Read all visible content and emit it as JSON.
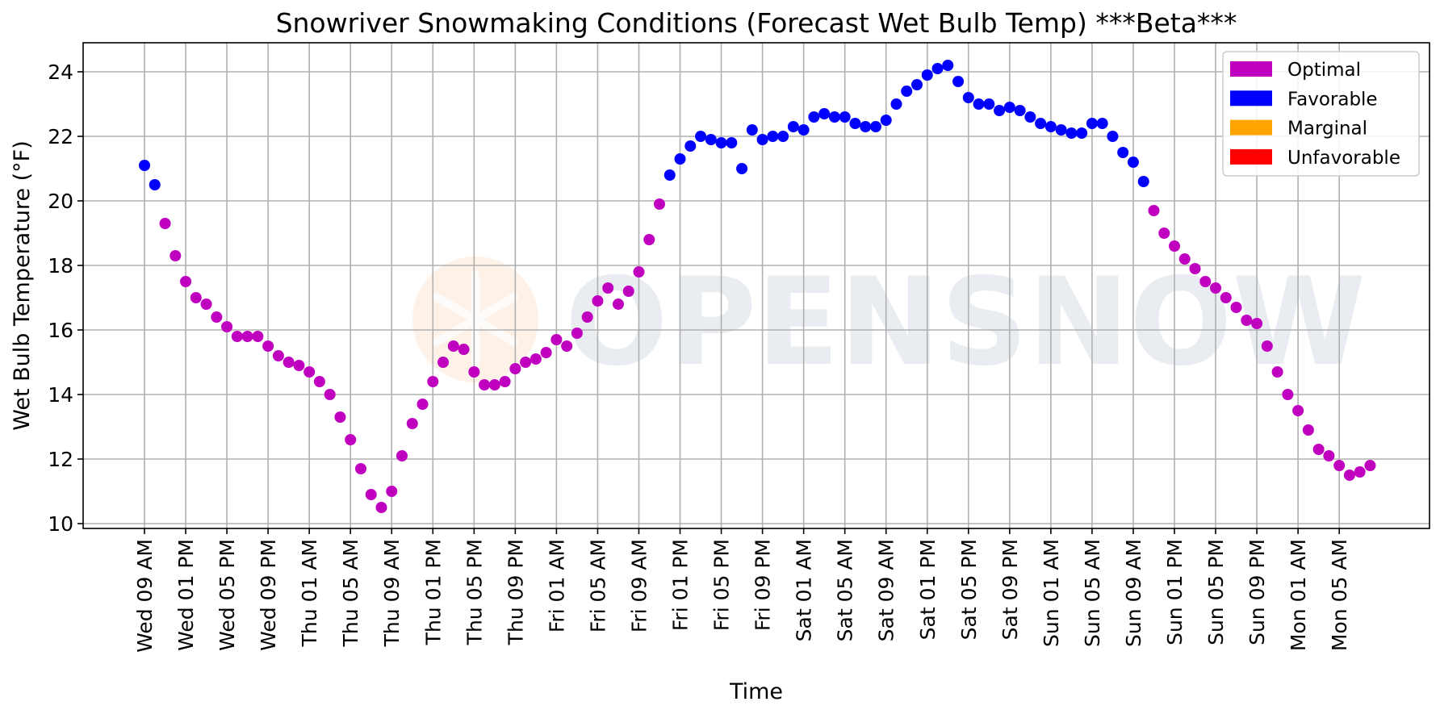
{
  "chart_data": {
    "type": "scatter",
    "title": "Snowriver Snowmaking Conditions (Forecast Wet Bulb Temp) ***Beta***",
    "xlabel": "Time",
    "ylabel": "Wet Bulb Temperature (°F)",
    "ylim": [
      9.85,
      24.9
    ],
    "yticks": [
      10,
      12,
      14,
      16,
      18,
      20,
      22,
      24
    ],
    "xticks": [
      "Wed 09 AM",
      "Wed 01 PM",
      "Wed 05 PM",
      "Wed 09 PM",
      "Thu 01 AM",
      "Thu 05 AM",
      "Thu 09 AM",
      "Thu 01 PM",
      "Thu 05 PM",
      "Thu 09 PM",
      "Fri 01 AM",
      "Fri 05 AM",
      "Fri 09 AM",
      "Fri 01 PM",
      "Fri 05 PM",
      "Fri 09 PM",
      "Sat 01 AM",
      "Sat 05 AM",
      "Sat 09 AM",
      "Sat 01 PM",
      "Sat 05 PM",
      "Sat 09 PM",
      "Sun 01 AM",
      "Sun 05 AM",
      "Sun 09 AM",
      "Sun 01 PM",
      "Sun 05 PM",
      "Sun 09 PM",
      "Mon 01 AM",
      "Mon 05 AM"
    ],
    "grid": true,
    "legend_position": "top-right",
    "legend": [
      {
        "label": "Optimal",
        "color": "#bf00bf"
      },
      {
        "label": "Favorable",
        "color": "#0000ff"
      },
      {
        "label": "Marginal",
        "color": "#ffa500"
      },
      {
        "label": "Unfavorable",
        "color": "#ff0000"
      }
    ],
    "point_interval_hours": 1,
    "points": [
      {
        "hour": 0,
        "y": 21.1,
        "category": "Favorable"
      },
      {
        "hour": 1,
        "y": 20.5,
        "category": "Favorable"
      },
      {
        "hour": 2,
        "y": 19.3,
        "category": "Optimal"
      },
      {
        "hour": 3,
        "y": 18.3,
        "category": "Optimal"
      },
      {
        "hour": 4,
        "y": 17.5,
        "category": "Optimal"
      },
      {
        "hour": 5,
        "y": 17.0,
        "category": "Optimal"
      },
      {
        "hour": 6,
        "y": 16.8,
        "category": "Optimal"
      },
      {
        "hour": 7,
        "y": 16.4,
        "category": "Optimal"
      },
      {
        "hour": 8,
        "y": 16.1,
        "category": "Optimal"
      },
      {
        "hour": 9,
        "y": 15.8,
        "category": "Optimal"
      },
      {
        "hour": 10,
        "y": 15.8,
        "category": "Optimal"
      },
      {
        "hour": 11,
        "y": 15.8,
        "category": "Optimal"
      },
      {
        "hour": 12,
        "y": 15.5,
        "category": "Optimal"
      },
      {
        "hour": 13,
        "y": 15.2,
        "category": "Optimal"
      },
      {
        "hour": 14,
        "y": 15.0,
        "category": "Optimal"
      },
      {
        "hour": 15,
        "y": 14.9,
        "category": "Optimal"
      },
      {
        "hour": 16,
        "y": 14.7,
        "category": "Optimal"
      },
      {
        "hour": 17,
        "y": 14.4,
        "category": "Optimal"
      },
      {
        "hour": 18,
        "y": 14.0,
        "category": "Optimal"
      },
      {
        "hour": 19,
        "y": 13.3,
        "category": "Optimal"
      },
      {
        "hour": 20,
        "y": 12.6,
        "category": "Optimal"
      },
      {
        "hour": 21,
        "y": 11.7,
        "category": "Optimal"
      },
      {
        "hour": 22,
        "y": 10.9,
        "category": "Optimal"
      },
      {
        "hour": 23,
        "y": 10.5,
        "category": "Optimal"
      },
      {
        "hour": 24,
        "y": 11.0,
        "category": "Optimal"
      },
      {
        "hour": 25,
        "y": 12.1,
        "category": "Optimal"
      },
      {
        "hour": 26,
        "y": 13.1,
        "category": "Optimal"
      },
      {
        "hour": 27,
        "y": 13.7,
        "category": "Optimal"
      },
      {
        "hour": 28,
        "y": 14.4,
        "category": "Optimal"
      },
      {
        "hour": 29,
        "y": 15.0,
        "category": "Optimal"
      },
      {
        "hour": 30,
        "y": 15.5,
        "category": "Optimal"
      },
      {
        "hour": 31,
        "y": 15.4,
        "category": "Optimal"
      },
      {
        "hour": 32,
        "y": 14.7,
        "category": "Optimal"
      },
      {
        "hour": 33,
        "y": 14.3,
        "category": "Optimal"
      },
      {
        "hour": 34,
        "y": 14.3,
        "category": "Optimal"
      },
      {
        "hour": 35,
        "y": 14.4,
        "category": "Optimal"
      },
      {
        "hour": 36,
        "y": 14.8,
        "category": "Optimal"
      },
      {
        "hour": 37,
        "y": 15.0,
        "category": "Optimal"
      },
      {
        "hour": 38,
        "y": 15.1,
        "category": "Optimal"
      },
      {
        "hour": 39,
        "y": 15.3,
        "category": "Optimal"
      },
      {
        "hour": 40,
        "y": 15.7,
        "category": "Optimal"
      },
      {
        "hour": 41,
        "y": 15.5,
        "category": "Optimal"
      },
      {
        "hour": 42,
        "y": 15.9,
        "category": "Optimal"
      },
      {
        "hour": 43,
        "y": 16.4,
        "category": "Optimal"
      },
      {
        "hour": 44,
        "y": 16.9,
        "category": "Optimal"
      },
      {
        "hour": 45,
        "y": 17.3,
        "category": "Optimal"
      },
      {
        "hour": 46,
        "y": 16.8,
        "category": "Optimal"
      },
      {
        "hour": 47,
        "y": 17.2,
        "category": "Optimal"
      },
      {
        "hour": 48,
        "y": 17.8,
        "category": "Optimal"
      },
      {
        "hour": 49,
        "y": 18.8,
        "category": "Optimal"
      },
      {
        "hour": 50,
        "y": 19.9,
        "category": "Optimal"
      },
      {
        "hour": 51,
        "y": 20.8,
        "category": "Favorable"
      },
      {
        "hour": 52,
        "y": 21.3,
        "category": "Favorable"
      },
      {
        "hour": 53,
        "y": 21.7,
        "category": "Favorable"
      },
      {
        "hour": 54,
        "y": 22.0,
        "category": "Favorable"
      },
      {
        "hour": 55,
        "y": 21.9,
        "category": "Favorable"
      },
      {
        "hour": 56,
        "y": 21.8,
        "category": "Favorable"
      },
      {
        "hour": 57,
        "y": 21.8,
        "category": "Favorable"
      },
      {
        "hour": 58,
        "y": 21.0,
        "category": "Favorable"
      },
      {
        "hour": 59,
        "y": 22.2,
        "category": "Favorable"
      },
      {
        "hour": 60,
        "y": 21.9,
        "category": "Favorable"
      },
      {
        "hour": 61,
        "y": 22.0,
        "category": "Favorable"
      },
      {
        "hour": 62,
        "y": 22.0,
        "category": "Favorable"
      },
      {
        "hour": 63,
        "y": 22.3,
        "category": "Favorable"
      },
      {
        "hour": 64,
        "y": 22.2,
        "category": "Favorable"
      },
      {
        "hour": 65,
        "y": 22.6,
        "category": "Favorable"
      },
      {
        "hour": 66,
        "y": 22.7,
        "category": "Favorable"
      },
      {
        "hour": 67,
        "y": 22.6,
        "category": "Favorable"
      },
      {
        "hour": 68,
        "y": 22.6,
        "category": "Favorable"
      },
      {
        "hour": 69,
        "y": 22.4,
        "category": "Favorable"
      },
      {
        "hour": 70,
        "y": 22.3,
        "category": "Favorable"
      },
      {
        "hour": 71,
        "y": 22.3,
        "category": "Favorable"
      },
      {
        "hour": 72,
        "y": 22.5,
        "category": "Favorable"
      },
      {
        "hour": 73,
        "y": 23.0,
        "category": "Favorable"
      },
      {
        "hour": 74,
        "y": 23.4,
        "category": "Favorable"
      },
      {
        "hour": 75,
        "y": 23.6,
        "category": "Favorable"
      },
      {
        "hour": 76,
        "y": 23.9,
        "category": "Favorable"
      },
      {
        "hour": 77,
        "y": 24.1,
        "category": "Favorable"
      },
      {
        "hour": 78,
        "y": 24.2,
        "category": "Favorable"
      },
      {
        "hour": 79,
        "y": 23.7,
        "category": "Favorable"
      },
      {
        "hour": 80,
        "y": 23.2,
        "category": "Favorable"
      },
      {
        "hour": 81,
        "y": 23.0,
        "category": "Favorable"
      },
      {
        "hour": 82,
        "y": 23.0,
        "category": "Favorable"
      },
      {
        "hour": 83,
        "y": 22.8,
        "category": "Favorable"
      },
      {
        "hour": 84,
        "y": 22.9,
        "category": "Favorable"
      },
      {
        "hour": 85,
        "y": 22.8,
        "category": "Favorable"
      },
      {
        "hour": 86,
        "y": 22.6,
        "category": "Favorable"
      },
      {
        "hour": 87,
        "y": 22.4,
        "category": "Favorable"
      },
      {
        "hour": 88,
        "y": 22.3,
        "category": "Favorable"
      },
      {
        "hour": 89,
        "y": 22.2,
        "category": "Favorable"
      },
      {
        "hour": 90,
        "y": 22.1,
        "category": "Favorable"
      },
      {
        "hour": 91,
        "y": 22.1,
        "category": "Favorable"
      },
      {
        "hour": 92,
        "y": 22.4,
        "category": "Favorable"
      },
      {
        "hour": 93,
        "y": 22.4,
        "category": "Favorable"
      },
      {
        "hour": 94,
        "y": 22.0,
        "category": "Favorable"
      },
      {
        "hour": 95,
        "y": 21.5,
        "category": "Favorable"
      },
      {
        "hour": 96,
        "y": 21.2,
        "category": "Favorable"
      },
      {
        "hour": 97,
        "y": 20.6,
        "category": "Favorable"
      },
      {
        "hour": 98,
        "y": 19.7,
        "category": "Optimal"
      },
      {
        "hour": 99,
        "y": 19.0,
        "category": "Optimal"
      },
      {
        "hour": 100,
        "y": 18.6,
        "category": "Optimal"
      },
      {
        "hour": 101,
        "y": 18.2,
        "category": "Optimal"
      },
      {
        "hour": 102,
        "y": 17.9,
        "category": "Optimal"
      },
      {
        "hour": 103,
        "y": 17.5,
        "category": "Optimal"
      },
      {
        "hour": 104,
        "y": 17.3,
        "category": "Optimal"
      },
      {
        "hour": 105,
        "y": 17.0,
        "category": "Optimal"
      },
      {
        "hour": 106,
        "y": 16.7,
        "category": "Optimal"
      },
      {
        "hour": 107,
        "y": 16.3,
        "category": "Optimal"
      },
      {
        "hour": 108,
        "y": 16.2,
        "category": "Optimal"
      },
      {
        "hour": 109,
        "y": 15.5,
        "category": "Optimal"
      },
      {
        "hour": 110,
        "y": 14.7,
        "category": "Optimal"
      },
      {
        "hour": 111,
        "y": 14.0,
        "category": "Optimal"
      },
      {
        "hour": 112,
        "y": 13.5,
        "category": "Optimal"
      },
      {
        "hour": 113,
        "y": 12.9,
        "category": "Optimal"
      },
      {
        "hour": 114,
        "y": 12.3,
        "category": "Optimal"
      },
      {
        "hour": 115,
        "y": 12.1,
        "category": "Optimal"
      },
      {
        "hour": 116,
        "y": 11.8,
        "category": "Optimal"
      },
      {
        "hour": 117,
        "y": 11.5,
        "category": "Optimal"
      },
      {
        "hour": 118,
        "y": 11.6,
        "category": "Optimal"
      },
      {
        "hour": 119,
        "y": 11.8,
        "category": "Optimal"
      }
    ]
  },
  "watermark": {
    "text": "OPENSNOW",
    "icon": "snowflake-icon",
    "color": "#d5dbe5",
    "icon_color": "#fde3cc"
  }
}
